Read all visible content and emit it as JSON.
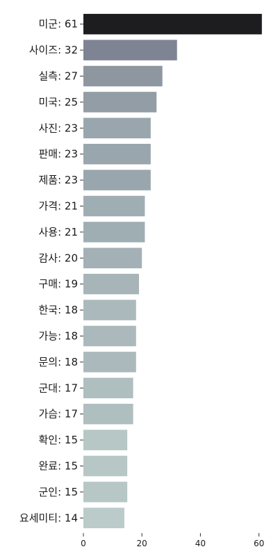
{
  "chart_data": {
    "type": "bar",
    "orientation": "horizontal",
    "categories": [
      "미군: 61",
      "사이즈: 32",
      "실측: 27",
      "미국: 25",
      "사진: 23",
      "판매: 23",
      "제품: 23",
      "가격: 21",
      "사용: 21",
      "감사: 20",
      "구매: 19",
      "한국: 18",
      "가능: 18",
      "문의: 18",
      "군대: 17",
      "가슴: 17",
      "확인: 15",
      "완료: 15",
      "군인: 15",
      "요세미티: 14"
    ],
    "values": [
      61,
      32,
      27,
      25,
      23,
      23,
      23,
      21,
      21,
      20,
      19,
      18,
      18,
      18,
      17,
      17,
      15,
      15,
      15,
      14
    ],
    "colors": [
      "#1d1d1f",
      "#7e8494",
      "#8e979f",
      "#929da5",
      "#99a6ad",
      "#99a6ad",
      "#99a6ad",
      "#9faeb3",
      "#9faeb3",
      "#a3b1b6",
      "#a7b5b9",
      "#abb9bc",
      "#abb9bc",
      "#abb9bc",
      "#afbebf",
      "#afbebf",
      "#b6c7c6",
      "#b6c7c6",
      "#b6c7c6",
      "#bacbc9"
    ],
    "xticks": [
      0,
      20,
      40,
      60
    ],
    "xlim": [
      0,
      62
    ],
    "title": "",
    "xlabel": "",
    "ylabel": "",
    "grid": false,
    "legend": "none"
  }
}
